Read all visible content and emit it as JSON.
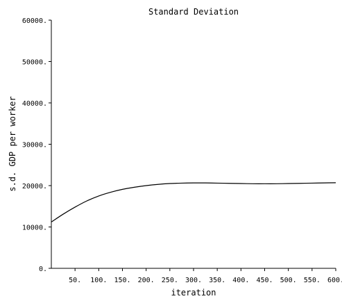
{
  "chart_data": {
    "type": "line",
    "title": "Standard Deviation",
    "xlabel": "iteration",
    "ylabel": "s.d. GDP per worker",
    "xlim": [
      0,
      600
    ],
    "ylim": [
      0,
      60000
    ],
    "xticks": [
      50,
      100,
      150,
      200,
      250,
      300,
      350,
      400,
      450,
      500,
      550,
      600
    ],
    "xtick_labels": [
      "50.",
      "100.",
      "150.",
      "200.",
      "250.",
      "300.",
      "350.",
      "400.",
      "450.",
      "500.",
      "550.",
      "600."
    ],
    "yticks": [
      0,
      10000,
      20000,
      30000,
      40000,
      50000,
      60000
    ],
    "ytick_labels": [
      "0.",
      "10000.",
      "20000.",
      "30000.",
      "40000.",
      "50000.",
      "60000."
    ],
    "grid": false,
    "x": [
      0,
      25,
      50,
      75,
      100,
      125,
      150,
      175,
      200,
      225,
      250,
      275,
      300,
      325,
      350,
      375,
      400,
      425,
      450,
      475,
      500,
      525,
      550,
      575,
      600
    ],
    "series": [
      {
        "values": [
          11200,
          13100,
          14800,
          16300,
          17500,
          18400,
          19100,
          19600,
          20000,
          20300,
          20500,
          20600,
          20650,
          20650,
          20600,
          20550,
          20500,
          20450,
          20450,
          20450,
          20500,
          20550,
          20600,
          20650,
          20700
        ],
        "color": "#000000"
      }
    ]
  }
}
